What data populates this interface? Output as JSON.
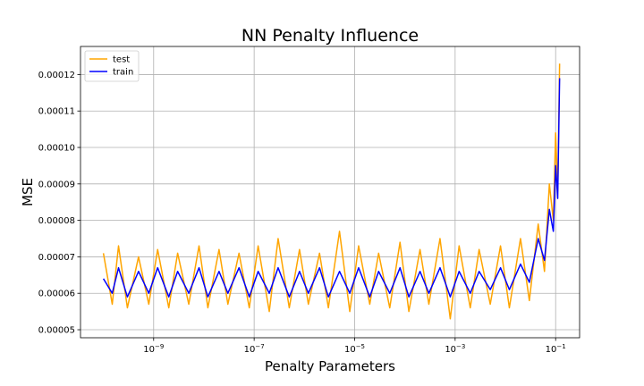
{
  "chart_data": {
    "type": "line",
    "title": "NN Penalty Influence",
    "xlabel": "Penalty Parameters",
    "ylabel": "MSE",
    "x_scale": "log",
    "xlim": [
      3.5e-11,
      0.3
    ],
    "ylim": [
      4.78e-05,
      0.0001277
    ],
    "x_ticks": [
      {
        "value": 1e-09,
        "base": "10",
        "exp": "−9"
      },
      {
        "value": 1e-07,
        "base": "10",
        "exp": "−7"
      },
      {
        "value": 1e-05,
        "base": "10",
        "exp": "−5"
      },
      {
        "value": 0.001,
        "base": "10",
        "exp": "−3"
      },
      {
        "value": 0.1,
        "base": "10",
        "exp": "−1"
      }
    ],
    "y_ticks": [
      5e-05,
      6e-05,
      7e-05,
      8e-05,
      9e-05,
      0.0001,
      0.00011,
      0.00012
    ],
    "y_tick_labels": [
      "0.00005",
      "0.00006",
      "0.00007",
      "0.00008",
      "0.00009",
      "0.00010",
      "0.00011",
      "0.00012"
    ],
    "grid": true,
    "legend_position": "top-left",
    "series": [
      {
        "name": "test",
        "color": "#ffa500",
        "x": [
          1e-10,
          1.5e-10,
          2e-10,
          3e-10,
          5e-10,
          8e-10,
          1.2e-09,
          2e-09,
          3e-09,
          5e-09,
          8e-09,
          1.2e-08,
          2e-08,
          3e-08,
          5e-08,
          8e-08,
          1.2e-07,
          2e-07,
          3e-07,
          5e-07,
          8e-07,
          1.2e-06,
          2e-06,
          3e-06,
          5e-06,
          8e-06,
          1.2e-05,
          2e-05,
          3e-05,
          5e-05,
          8e-05,
          0.00012,
          0.0002,
          0.0003,
          0.0005,
          0.0008,
          0.0012,
          0.002,
          0.003,
          0.005,
          0.008,
          0.012,
          0.02,
          0.03,
          0.045,
          0.06,
          0.075,
          0.09,
          0.1,
          0.11,
          0.12
        ],
        "y": [
          7.1e-05,
          5.7e-05,
          7.3e-05,
          5.6e-05,
          7e-05,
          5.7e-05,
          7.2e-05,
          5.6e-05,
          7.1e-05,
          5.7e-05,
          7.3e-05,
          5.6e-05,
          7.2e-05,
          5.7e-05,
          7.1e-05,
          5.6e-05,
          7.3e-05,
          5.5e-05,
          7.5e-05,
          5.6e-05,
          7.2e-05,
          5.7e-05,
          7.1e-05,
          5.6e-05,
          7.7e-05,
          5.5e-05,
          7.3e-05,
          5.7e-05,
          7.1e-05,
          5.6e-05,
          7.4e-05,
          5.5e-05,
          7.2e-05,
          5.7e-05,
          7.5e-05,
          5.3e-05,
          7.3e-05,
          5.6e-05,
          7.2e-05,
          5.7e-05,
          7.3e-05,
          5.6e-05,
          7.5e-05,
          5.8e-05,
          7.9e-05,
          6.6e-05,
          9e-05,
          8e-05,
          0.000104,
          8.8e-05,
          0.000123
        ]
      },
      {
        "name": "train",
        "color": "#0000ff",
        "x": [
          1e-10,
          1.5e-10,
          2e-10,
          3e-10,
          5e-10,
          8e-10,
          1.2e-09,
          2e-09,
          3e-09,
          5e-09,
          8e-09,
          1.2e-08,
          2e-08,
          3e-08,
          5e-08,
          8e-08,
          1.2e-07,
          2e-07,
          3e-07,
          5e-07,
          8e-07,
          1.2e-06,
          2e-06,
          3e-06,
          5e-06,
          8e-06,
          1.2e-05,
          2e-05,
          3e-05,
          5e-05,
          8e-05,
          0.00012,
          0.0002,
          0.0003,
          0.0005,
          0.0008,
          0.0012,
          0.002,
          0.003,
          0.005,
          0.008,
          0.012,
          0.02,
          0.03,
          0.045,
          0.06,
          0.075,
          0.09,
          0.1,
          0.11,
          0.12
        ],
        "y": [
          6.4e-05,
          6e-05,
          6.7e-05,
          5.9e-05,
          6.6e-05,
          6e-05,
          6.7e-05,
          5.9e-05,
          6.6e-05,
          6e-05,
          6.7e-05,
          5.9e-05,
          6.6e-05,
          6e-05,
          6.7e-05,
          5.9e-05,
          6.6e-05,
          6e-05,
          6.7e-05,
          5.9e-05,
          6.6e-05,
          6e-05,
          6.7e-05,
          5.9e-05,
          6.6e-05,
          6e-05,
          6.7e-05,
          5.9e-05,
          6.6e-05,
          6e-05,
          6.7e-05,
          5.9e-05,
          6.6e-05,
          6e-05,
          6.7e-05,
          5.9e-05,
          6.6e-05,
          6e-05,
          6.6e-05,
          6.1e-05,
          6.7e-05,
          6.1e-05,
          6.8e-05,
          6.3e-05,
          7.5e-05,
          6.9e-05,
          8.3e-05,
          7.7e-05,
          9.5e-05,
          8.6e-05,
          0.000119
        ]
      }
    ]
  }
}
